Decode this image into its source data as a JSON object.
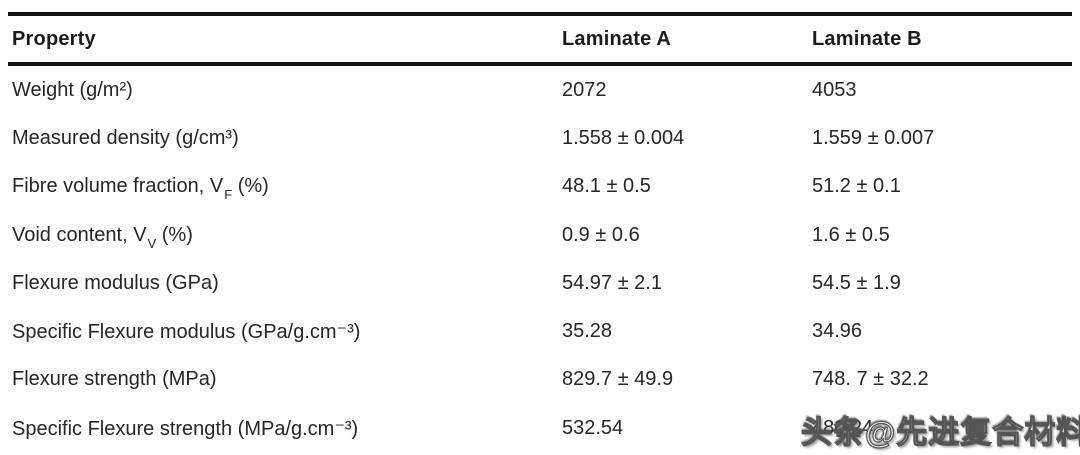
{
  "header": {
    "property": "Property",
    "laminate_a": "Laminate A",
    "laminate_b": "Laminate B"
  },
  "rows": [
    {
      "label": "Weight (g/m²)",
      "sub": "",
      "suffix": "",
      "a": "2072",
      "b": "4053"
    },
    {
      "label": "Measured density (g/cm³)",
      "sub": "",
      "suffix": "",
      "a": "1.558 ± 0.004",
      "b": "1.559 ± 0.007"
    },
    {
      "label": "Fibre volume fraction, V",
      "sub": "F",
      "suffix": " (%)",
      "a": "48.1 ± 0.5",
      "b": "51.2 ± 0.1"
    },
    {
      "label": "Void content, V",
      "sub": "V",
      "suffix": " (%)",
      "a": "0.9 ± 0.6",
      "b": "1.6 ± 0.5"
    },
    {
      "label": "Flexure modulus (GPa)",
      "sub": "",
      "suffix": "",
      "a": "54.97 ± 2.1",
      "b": "54.5 ± 1.9"
    },
    {
      "label": "Specific Flexure modulus (GPa/g.cm⁻³)",
      "sub": "",
      "suffix": "",
      "a": "35.28",
      "b": "34.96"
    },
    {
      "label": "Flexure strength (MPa)",
      "sub": "",
      "suffix": "",
      "a": "829.7 ± 49.9",
      "b": "748. 7 ± 32.2"
    },
    {
      "label": "Specific Flexure strength (MPa/g.cm⁻³)",
      "sub": "",
      "suffix": "",
      "a": "532.54",
      "b": "480.24"
    }
  ],
  "watermark": {
    "text": "头条@先进复合材料"
  },
  "colors": {
    "text": "#262626",
    "rule": "#141414",
    "background": "#ffffff"
  },
  "chart_data": {
    "type": "table",
    "columns": [
      "Property",
      "Laminate A",
      "Laminate B"
    ],
    "rows": [
      [
        "Weight (g/m²)",
        "2072",
        "4053"
      ],
      [
        "Measured density (g/cm³)",
        "1.558 ± 0.004",
        "1.559 ± 0.007"
      ],
      [
        "Fibre volume fraction, V_F (%)",
        "48.1 ± 0.5",
        "51.2 ± 0.1"
      ],
      [
        "Void content, V_V (%)",
        "0.9 ± 0.6",
        "1.6 ± 0.5"
      ],
      [
        "Flexure modulus (GPa)",
        "54.97 ± 2.1",
        "54.5 ± 1.9"
      ],
      [
        "Specific Flexure modulus (GPa/g.cm⁻³)",
        "35.28",
        "34.96"
      ],
      [
        "Flexure strength (MPa)",
        "829.7 ± 49.9",
        "748. 7 ± 32.2"
      ],
      [
        "Specific Flexure strength (MPa/g.cm⁻³)",
        "532.54",
        "480.24"
      ]
    ]
  }
}
